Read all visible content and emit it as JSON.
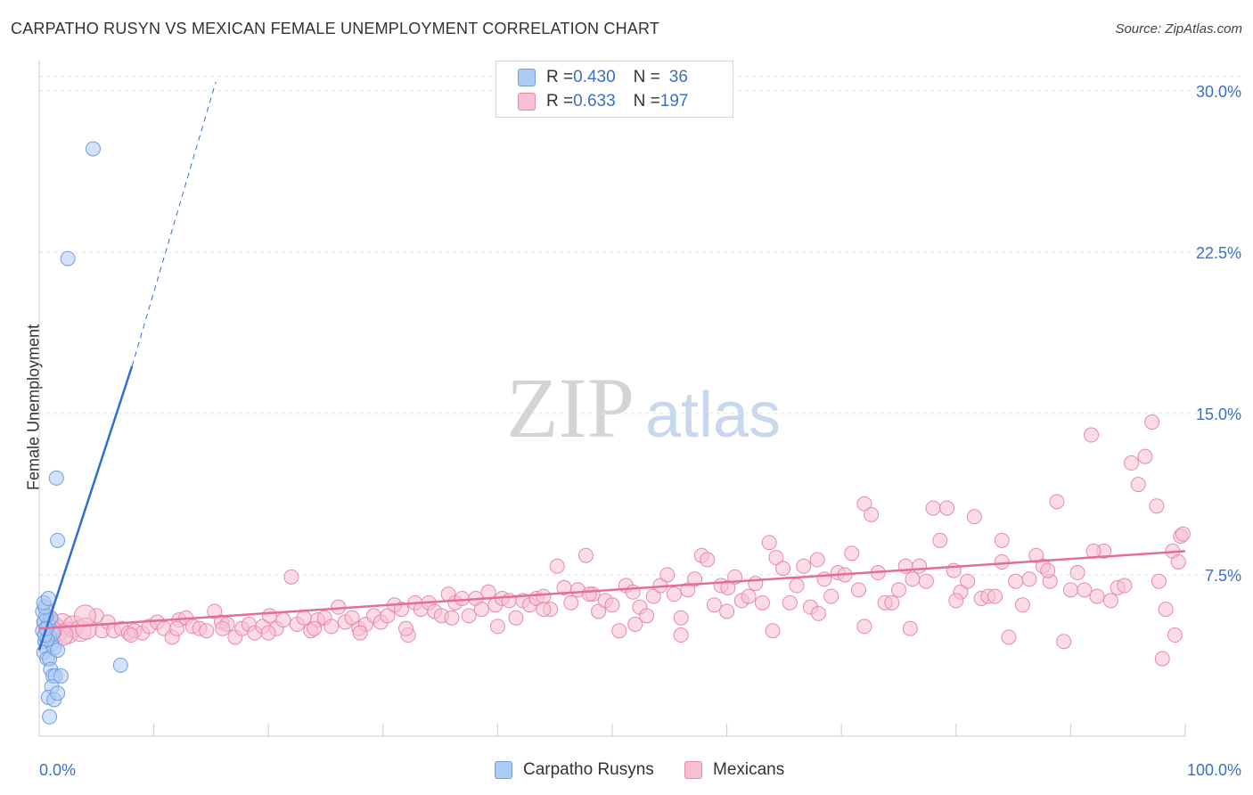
{
  "title": "CARPATHO RUSYN VS MEXICAN FEMALE UNEMPLOYMENT CORRELATION CHART",
  "source": "Source: ZipAtlas.com",
  "watermark": {
    "zip": "ZIP",
    "atlas": "atlas"
  },
  "legend": {
    "rows": [
      {
        "r_label": "R = ",
        "r_value": "0.430",
        "n_label": "N = ",
        "n_value": "36",
        "color": "#aecbf5",
        "border": "#6f9fdc"
      },
      {
        "r_label": "R = ",
        "r_value": "0.633",
        "n_label": "N = ",
        "n_value": "197",
        "color": "#f8bfd2",
        "border": "#e889aa"
      }
    ]
  },
  "bottom_legend": [
    {
      "label": "Carpatho Rusyns",
      "color": "#aecbf5",
      "border": "#6f9fdc"
    },
    {
      "label": "Mexicans",
      "color": "#f8bfd2",
      "border": "#e889aa"
    }
  ],
  "chart_data": {
    "type": "scatter",
    "xlabel": "",
    "ylabel": "Female Unemployment",
    "xlim": [
      0,
      100
    ],
    "ylim": [
      0,
      31.4
    ],
    "x_tick_labels": [
      "0.0%",
      "100.0%"
    ],
    "y_ticks": [
      {
        "value": 7.5,
        "label": "7.5%"
      },
      {
        "value": 15.0,
        "label": "15.0%"
      },
      {
        "value": 22.5,
        "label": "22.5%"
      },
      {
        "value": 30.0,
        "label": "30.0%"
      }
    ],
    "grid": true,
    "series": [
      {
        "name": "Carpatho Rusyns",
        "color": "#aecbf5",
        "stroke": "#6f9fdc",
        "line_color": "#2f6fd1",
        "trend": {
          "x0": 0,
          "y0": 4.0,
          "x1": 8.1,
          "y1": 17.2,
          "dash_to_x": 15.4,
          "dash_to_y": 30.4
        },
        "points": [
          [
            0.3,
            5.8
          ],
          [
            0.4,
            5.3
          ],
          [
            0.3,
            4.9
          ],
          [
            0.5,
            4.4
          ],
          [
            0.6,
            4.1
          ],
          [
            0.4,
            3.9
          ],
          [
            0.7,
            3.6
          ],
          [
            0.9,
            4.6
          ],
          [
            1.1,
            4.3
          ],
          [
            1.2,
            4.8
          ],
          [
            0.8,
            5.2
          ],
          [
            1.0,
            5.5
          ],
          [
            0.6,
            5.6
          ],
          [
            0.5,
            6.0
          ],
          [
            0.9,
            3.6
          ],
          [
            1.0,
            3.1
          ],
          [
            1.2,
            2.8
          ],
          [
            1.4,
            2.8
          ],
          [
            1.1,
            2.3
          ],
          [
            0.8,
            1.8
          ],
          [
            1.3,
            1.7
          ],
          [
            1.6,
            2.0
          ],
          [
            0.9,
            0.9
          ],
          [
            1.3,
            4.1
          ],
          [
            1.6,
            4.0
          ],
          [
            0.7,
            4.5
          ],
          [
            0.5,
            4.7
          ],
          [
            1.9,
            2.8
          ],
          [
            0.4,
            6.2
          ],
          [
            0.8,
            6.4
          ],
          [
            1.5,
            12.0
          ],
          [
            1.6,
            9.1
          ],
          [
            2.5,
            22.2
          ],
          [
            4.7,
            27.3
          ],
          [
            7.1,
            3.3
          ],
          [
            0.6,
            5.0
          ]
        ]
      },
      {
        "name": "Mexicans",
        "color": "#f8bfd2",
        "stroke": "#e889aa",
        "line_color": "#e56b98",
        "trend": {
          "x0": 0,
          "y0": 5.0,
          "x1": 100,
          "y1": 8.6
        },
        "points": [
          [
            0.8,
            5.3
          ],
          [
            1.2,
            5.1
          ],
          [
            1.6,
            4.9
          ],
          [
            2.0,
            5.2
          ],
          [
            2.5,
            4.8
          ],
          [
            3.0,
            5.1
          ],
          [
            3.6,
            4.9
          ],
          [
            4.1,
            5.0
          ],
          [
            5.0,
            5.6
          ],
          [
            5.5,
            4.9
          ],
          [
            6.0,
            5.3
          ],
          [
            6.5,
            4.9
          ],
          [
            7.2,
            5.0
          ],
          [
            7.8,
            4.8
          ],
          [
            8.3,
            4.9
          ],
          [
            9.0,
            4.8
          ],
          [
            9.6,
            5.1
          ],
          [
            10.3,
            5.3
          ],
          [
            10.9,
            5.0
          ],
          [
            11.6,
            4.6
          ],
          [
            12.2,
            5.4
          ],
          [
            12.8,
            5.5
          ],
          [
            13.4,
            5.1
          ],
          [
            14.0,
            5.0
          ],
          [
            14.6,
            4.9
          ],
          [
            15.3,
            5.8
          ],
          [
            15.9,
            5.3
          ],
          [
            16.4,
            5.2
          ],
          [
            17.1,
            4.6
          ],
          [
            17.7,
            5.0
          ],
          [
            18.3,
            5.2
          ],
          [
            18.8,
            4.8
          ],
          [
            19.5,
            5.1
          ],
          [
            20.1,
            5.6
          ],
          [
            20.7,
            5.0
          ],
          [
            21.3,
            5.4
          ],
          [
            22.0,
            7.4
          ],
          [
            22.5,
            5.2
          ],
          [
            23.1,
            5.5
          ],
          [
            23.7,
            4.9
          ],
          [
            24.3,
            5.4
          ],
          [
            24.9,
            5.5
          ],
          [
            25.5,
            5.1
          ],
          [
            26.1,
            6.0
          ],
          [
            26.7,
            5.3
          ],
          [
            27.3,
            5.5
          ],
          [
            27.9,
            5.0
          ],
          [
            28.5,
            5.2
          ],
          [
            29.2,
            5.6
          ],
          [
            29.8,
            5.3
          ],
          [
            30.4,
            5.6
          ],
          [
            31.0,
            6.1
          ],
          [
            31.6,
            5.9
          ],
          [
            32.2,
            4.7
          ],
          [
            32.8,
            6.2
          ],
          [
            33.3,
            5.9
          ],
          [
            34.0,
            6.2
          ],
          [
            34.5,
            5.8
          ],
          [
            35.1,
            5.6
          ],
          [
            35.7,
            6.6
          ],
          [
            36.3,
            6.2
          ],
          [
            36.9,
            6.4
          ],
          [
            37.5,
            5.6
          ],
          [
            38.1,
            6.4
          ],
          [
            38.6,
            5.9
          ],
          [
            39.2,
            6.7
          ],
          [
            39.8,
            6.1
          ],
          [
            40.4,
            6.4
          ],
          [
            41.0,
            6.3
          ],
          [
            41.6,
            5.5
          ],
          [
            42.2,
            6.3
          ],
          [
            42.8,
            6.1
          ],
          [
            43.4,
            6.4
          ],
          [
            44.0,
            6.5
          ],
          [
            44.6,
            5.9
          ],
          [
            45.2,
            7.9
          ],
          [
            45.8,
            6.9
          ],
          [
            46.4,
            6.2
          ],
          [
            47.0,
            6.8
          ],
          [
            47.7,
            8.4
          ],
          [
            48.3,
            6.6
          ],
          [
            48.8,
            5.8
          ],
          [
            49.4,
            6.3
          ],
          [
            50.0,
            6.1
          ],
          [
            50.6,
            4.9
          ],
          [
            51.2,
            7.0
          ],
          [
            51.8,
            6.7
          ],
          [
            52.4,
            6.0
          ],
          [
            53.0,
            5.6
          ],
          [
            53.6,
            6.5
          ],
          [
            54.2,
            7.0
          ],
          [
            54.8,
            7.5
          ],
          [
            55.4,
            6.6
          ],
          [
            56.0,
            5.5
          ],
          [
            56.6,
            6.8
          ],
          [
            57.2,
            7.3
          ],
          [
            57.8,
            8.4
          ],
          [
            58.3,
            8.2
          ],
          [
            58.9,
            6.1
          ],
          [
            59.5,
            7.0
          ],
          [
            60.1,
            6.9
          ],
          [
            60.7,
            7.4
          ],
          [
            61.3,
            6.3
          ],
          [
            61.9,
            6.5
          ],
          [
            62.5,
            7.1
          ],
          [
            63.1,
            6.2
          ],
          [
            63.7,
            9.0
          ],
          [
            64.3,
            8.3
          ],
          [
            64.9,
            7.8
          ],
          [
            65.5,
            6.2
          ],
          [
            66.1,
            7.0
          ],
          [
            66.7,
            7.9
          ],
          [
            67.3,
            6.0
          ],
          [
            67.9,
            8.2
          ],
          [
            68.5,
            7.3
          ],
          [
            69.1,
            6.5
          ],
          [
            69.7,
            7.6
          ],
          [
            70.3,
            7.5
          ],
          [
            70.9,
            8.5
          ],
          [
            71.5,
            6.8
          ],
          [
            72.0,
            10.8
          ],
          [
            72.6,
            10.3
          ],
          [
            73.2,
            7.6
          ],
          [
            73.8,
            6.2
          ],
          [
            74.4,
            6.2
          ],
          [
            75.0,
            6.8
          ],
          [
            75.6,
            7.9
          ],
          [
            76.2,
            7.3
          ],
          [
            76.8,
            7.9
          ],
          [
            77.4,
            7.2
          ],
          [
            78.0,
            10.6
          ],
          [
            78.6,
            9.1
          ],
          [
            79.2,
            10.6
          ],
          [
            79.8,
            7.7
          ],
          [
            80.4,
            6.7
          ],
          [
            81.0,
            7.2
          ],
          [
            81.6,
            10.2
          ],
          [
            82.2,
            6.4
          ],
          [
            82.8,
            6.5
          ],
          [
            83.4,
            6.5
          ],
          [
            84.0,
            8.1
          ],
          [
            84.6,
            4.6
          ],
          [
            85.2,
            7.2
          ],
          [
            85.8,
            6.1
          ],
          [
            86.4,
            7.3
          ],
          [
            87.0,
            8.4
          ],
          [
            87.6,
            7.9
          ],
          [
            88.2,
            7.2
          ],
          [
            88.8,
            10.9
          ],
          [
            89.4,
            4.4
          ],
          [
            90.0,
            6.8
          ],
          [
            90.6,
            7.6
          ],
          [
            91.2,
            6.8
          ],
          [
            91.8,
            14.0
          ],
          [
            92.3,
            6.5
          ],
          [
            92.9,
            8.6
          ],
          [
            93.5,
            6.3
          ],
          [
            94.1,
            6.9
          ],
          [
            94.7,
            7.0
          ],
          [
            95.3,
            12.7
          ],
          [
            95.9,
            11.7
          ],
          [
            96.5,
            13.0
          ],
          [
            97.1,
            14.6
          ],
          [
            97.7,
            7.2
          ],
          [
            98.3,
            5.9
          ],
          [
            98.9,
            8.6
          ],
          [
            99.4,
            8.1
          ],
          [
            99.1,
            4.7
          ],
          [
            98.0,
            3.6
          ],
          [
            97.5,
            10.7
          ],
          [
            99.6,
            9.3
          ],
          [
            99.8,
            9.4
          ],
          [
            92.0,
            8.6
          ],
          [
            88.0,
            7.7
          ],
          [
            84.0,
            9.1
          ],
          [
            80.0,
            6.3
          ],
          [
            76.0,
            5.0
          ],
          [
            72.0,
            5.1
          ],
          [
            68.0,
            5.7
          ],
          [
            64.0,
            4.9
          ],
          [
            60.0,
            5.8
          ],
          [
            56.0,
            4.7
          ],
          [
            52.0,
            5.2
          ],
          [
            48.0,
            6.6
          ],
          [
            44.0,
            5.9
          ],
          [
            40.0,
            5.1
          ],
          [
            36.0,
            5.5
          ],
          [
            32.0,
            5.0
          ],
          [
            28.0,
            4.8
          ],
          [
            24.0,
            5.0
          ],
          [
            20.0,
            4.8
          ],
          [
            16.0,
            5.0
          ],
          [
            12.0,
            5.0
          ],
          [
            8.0,
            4.7
          ],
          [
            4.0,
            5.6
          ],
          [
            2.0,
            4.7
          ],
          [
            1.0,
            4.9
          ]
        ]
      }
    ]
  }
}
